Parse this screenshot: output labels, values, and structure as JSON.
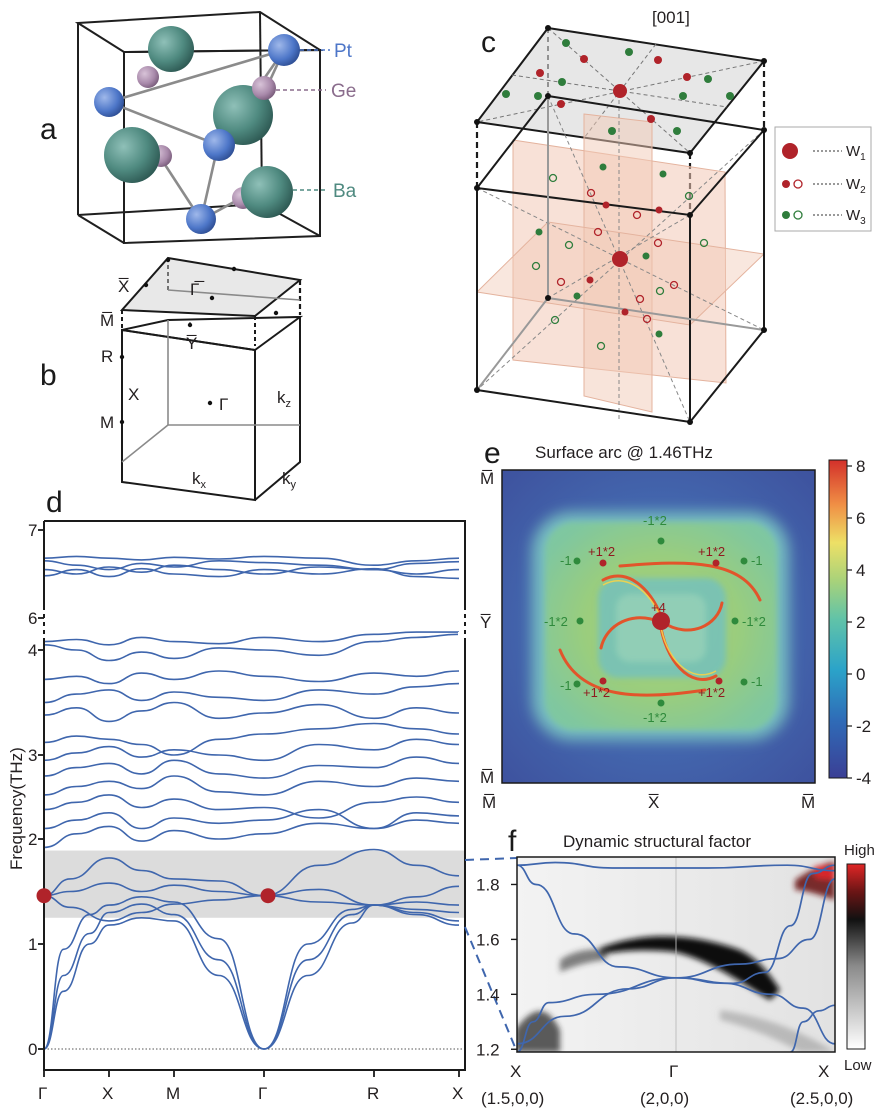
{
  "panel_labels": {
    "a": "a",
    "b": "b",
    "c": "c",
    "d": "d",
    "e": "e",
    "f": "f"
  },
  "panel_a": {
    "atoms": {
      "pt": "Pt",
      "ge": "Ge",
      "ba": "Ba"
    }
  },
  "panel_b": {
    "labels": {
      "xbar": "X̅",
      "gbar": "Γ̅",
      "mbar": "M̅",
      "ybar": "Y̅",
      "r": "R",
      "x": "X",
      "gamma": "Γ",
      "m": "M",
      "kz": "k",
      "kx": "k",
      "ky": "k",
      "kz_sub": "z",
      "kx_sub": "x",
      "ky_sub": "y"
    }
  },
  "panel_c": {
    "direction": "[001]",
    "legend": {
      "w1": "W",
      "w1_sub": "1",
      "w2": "W",
      "w2_sub": "2",
      "w3": "W",
      "w3_sub": "3"
    }
  },
  "chart_data": [
    {
      "panel": "d",
      "type": "line",
      "ylabel": "Frequency(THz)",
      "x_ticks": [
        "Γ",
        "X",
        "M",
        "Γ",
        "R",
        "X"
      ],
      "y_ticks_lower": [
        "0",
        "1",
        "2",
        "3",
        "4"
      ],
      "y_ticks_upper": [
        "6",
        "7"
      ],
      "band_gap_highlight_thz": [
        1.25,
        1.89
      ],
      "weyl_points": [
        {
          "k": "Γ",
          "freq_thz": 1.46
        },
        {
          "k": "Γ",
          "freq_thz": 1.46
        }
      ],
      "acoustic_branch_thz_at_X": [
        1.18,
        1.3,
        1.37
      ],
      "optical_top_band_thz": [
        6.45,
        6.7
      ]
    },
    {
      "panel": "e",
      "type": "heatmap",
      "title": "Surface arc @ 1.46THz",
      "colorbar_ticks": [
        "8",
        "6",
        "4",
        "2",
        "0",
        "-2",
        "-4"
      ],
      "colorbar_range": [
        -4,
        8
      ],
      "x_ticks": [
        "M̅",
        "X̅",
        "M̅"
      ],
      "y_ticks": [
        "M̅",
        "Y̅",
        "M̅"
      ],
      "annotations": {
        "center": "+4",
        "red_corner": "+1*2",
        "green_edge": "-1*2",
        "green_corner": "-1"
      }
    },
    {
      "panel": "f",
      "type": "heatmap",
      "title": "Dynamic structural factor",
      "y_ticks": [
        "1.2",
        "1.4",
        "1.6",
        "1.8"
      ],
      "ylim": [
        1.19,
        1.9
      ],
      "x_ticks": [
        "X",
        "Γ",
        "X"
      ],
      "x_coords": [
        "(1.5,0,0)",
        "(2,0,0)",
        "(2.5,0,0)"
      ],
      "colorbar_high": "High",
      "colorbar_low": "Low"
    }
  ]
}
